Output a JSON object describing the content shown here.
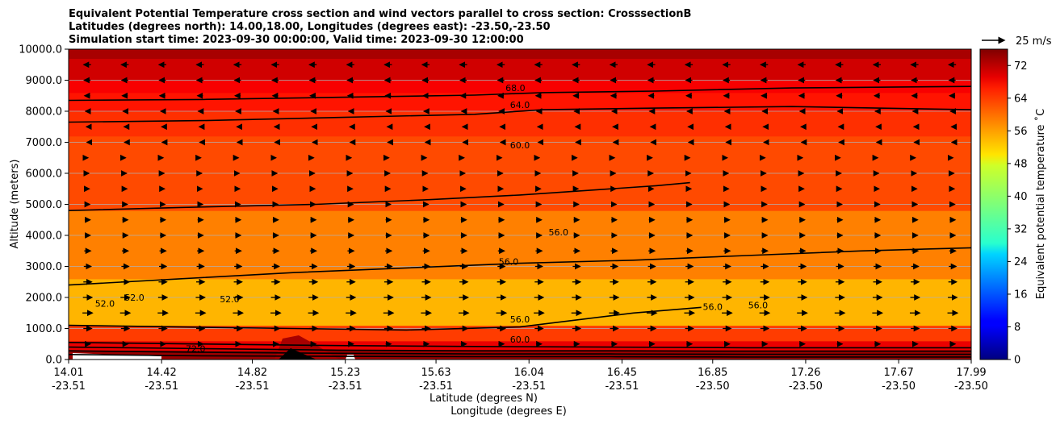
{
  "chart_data": {
    "type": "heatmap",
    "title_lines": [
      "Equivalent Potential Temperature cross section and wind vectors parallel to cross section: CrosssectionB",
      "Latitudes (degrees north): 14.00,18.00, Longitudes (degrees east): -23.50,-23.50",
      "Simulation start time: 2023-09-30 00:00:00, Valid time: 2023-09-30 12:00:00"
    ],
    "xlabel_lines": [
      "Latitude (degrees N)",
      "Longitude (degrees E)"
    ],
    "ylabel": "Altitude (meters)",
    "xlim": [
      14.01,
      17.99
    ],
    "ylim": [
      0,
      10000
    ],
    "x_ticks": [
      {
        "lat": "14.01",
        "lon": "-23.51",
        "value": 14.01
      },
      {
        "lat": "14.42",
        "lon": "-23.51",
        "value": 14.42
      },
      {
        "lat": "14.82",
        "lon": "-23.51",
        "value": 14.82
      },
      {
        "lat": "15.23",
        "lon": "-23.51",
        "value": 15.23
      },
      {
        "lat": "15.63",
        "lon": "-23.51",
        "value": 15.63
      },
      {
        "lat": "16.04",
        "lon": "-23.51",
        "value": 16.04
      },
      {
        "lat": "16.45",
        "lon": "-23.51",
        "value": 16.45
      },
      {
        "lat": "16.85",
        "lon": "-23.50",
        "value": 16.85
      },
      {
        "lat": "17.26",
        "lon": "-23.50",
        "value": 17.26
      },
      {
        "lat": "17.67",
        "lon": "-23.50",
        "value": 17.67
      },
      {
        "lat": "17.99",
        "lon": "-23.50",
        "value": 17.99
      }
    ],
    "y_ticks": [
      {
        "label": "0.0",
        "value": 0
      },
      {
        "label": "1000.0",
        "value": 1000
      },
      {
        "label": "2000.0",
        "value": 2000
      },
      {
        "label": "3000.0",
        "value": 3000
      },
      {
        "label": "4000.0",
        "value": 4000
      },
      {
        "label": "5000.0",
        "value": 5000
      },
      {
        "label": "6000.0",
        "value": 6000
      },
      {
        "label": "7000.0",
        "value": 7000
      },
      {
        "label": "8000.0",
        "value": 8000
      },
      {
        "label": "9000.0",
        "value": 9000
      },
      {
        "label": "10000.0",
        "value": 10000
      }
    ],
    "grid": "horizontal",
    "colorbar": {
      "label": "Equivalent potential temperature ˚C",
      "range": [
        0,
        76
      ],
      "ticks": [
        {
          "label": "0",
          "value": 0
        },
        {
          "label": "8",
          "value": 8
        },
        {
          "label": "16",
          "value": 16
        },
        {
          "label": "24",
          "value": 24
        },
        {
          "label": "32",
          "value": 32
        },
        {
          "label": "40",
          "value": 40
        },
        {
          "label": "48",
          "value": 48
        },
        {
          "label": "56",
          "value": 56
        },
        {
          "label": "64",
          "value": 64
        },
        {
          "label": "72",
          "value": 72
        }
      ],
      "colormap": "jet"
    },
    "quiver_key": {
      "label": "25 m/s",
      "speed": 25
    },
    "theta_e_bands": [
      {
        "from": 0,
        "to": 300,
        "value": 74
      },
      {
        "from": 300,
        "to": 600,
        "value": 68
      },
      {
        "from": 600,
        "to": 1100,
        "value": 62
      },
      {
        "from": 1100,
        "to": 2600,
        "value": 53
      },
      {
        "from": 2600,
        "to": 4800,
        "value": 57
      },
      {
        "from": 4800,
        "to": 7200,
        "value": 61
      },
      {
        "from": 7200,
        "to": 8000,
        "value": 63
      },
      {
        "from": 8000,
        "to": 8600,
        "value": 65
      },
      {
        "from": 8600,
        "to": 9000,
        "value": 67
      },
      {
        "from": 9000,
        "to": 9700,
        "value": 70
      },
      {
        "from": 9700,
        "to": 10000,
        "value": 73
      }
    ],
    "contours": [
      {
        "label": "68.0",
        "value": 68,
        "x": [
          14.01,
          14.6,
          15.2,
          15.8,
          16.1,
          16.6,
          17.2,
          17.99
        ],
        "y": [
          8350,
          8380,
          8450,
          8520,
          8600,
          8650,
          8750,
          8800
        ]
      },
      {
        "label": "64.0",
        "value": 64,
        "x": [
          14.01,
          14.6,
          15.2,
          15.8,
          16.1,
          16.6,
          17.2,
          17.99
        ],
        "y": [
          7650,
          7700,
          7800,
          7900,
          8050,
          8100,
          8150,
          8050
        ]
      },
      {
        "label": "60.0",
        "value": 60,
        "x": [
          14.01,
          14.5,
          15.1,
          15.6,
          16.0,
          16.3,
          16.6,
          16.75
        ],
        "y": [
          4800,
          4900,
          5000,
          5150,
          5300,
          5450,
          5600,
          5700
        ]
      },
      {
        "label": "56.0",
        "value": 56,
        "x": [
          14.01,
          14.5,
          15.0,
          15.5,
          16.0,
          16.5,
          17.0,
          17.5,
          17.99
        ],
        "y": [
          2400,
          2600,
          2800,
          2950,
          3100,
          3200,
          3350,
          3500,
          3600
        ]
      },
      {
        "label": "56.0",
        "value": 56,
        "x": [
          14.01,
          14.5,
          15.0,
          15.5,
          16.0,
          16.5,
          16.8
        ],
        "y": [
          1100,
          1050,
          1000,
          950,
          1050,
          1500,
          1680
        ]
      },
      {
        "label": "60.0",
        "value": 60,
        "x": [
          14.01,
          14.6,
          15.2,
          15.8,
          16.4,
          17.0,
          17.99
        ],
        "y": [
          550,
          500,
          450,
          420,
          400,
          380,
          380
        ]
      },
      {
        "label": "64.0",
        "value": 64,
        "x": [
          14.01,
          14.6,
          15.2,
          15.8,
          16.4,
          17.0,
          17.99
        ],
        "y": [
          400,
          350,
          300,
          280,
          280,
          270,
          270
        ]
      },
      {
        "label": "68.0",
        "value": 68,
        "x": [
          14.01,
          14.6,
          15.2,
          15.8,
          16.4,
          17.0,
          17.99
        ],
        "y": [
          280,
          230,
          200,
          180,
          180,
          170,
          170
        ]
      },
      {
        "label": "72.0",
        "value": 72,
        "x": [
          14.01,
          14.6,
          15.2,
          15.8,
          16.4,
          17.0,
          17.99
        ],
        "y": [
          160,
          120,
          100,
          90,
          90,
          80,
          80
        ]
      }
    ],
    "contour_labels": [
      {
        "text": "68.0",
        "x": 15.98,
        "y": 8650
      },
      {
        "text": "64.0",
        "x": 16.0,
        "y": 8100
      },
      {
        "text": "60.0",
        "x": 16.0,
        "y": 6800
      },
      {
        "text": "56.0",
        "x": 16.17,
        "y": 4000
      },
      {
        "text": "56.0",
        "x": 15.95,
        "y": 3050
      },
      {
        "text": "52.0",
        "x": 14.3,
        "y": 1900
      },
      {
        "text": "52.0",
        "x": 14.17,
        "y": 1700
      },
      {
        "text": "52.0",
        "x": 14.72,
        "y": 1850
      },
      {
        "text": "56.0",
        "x": 16.0,
        "y": 1200
      },
      {
        "text": "56.0",
        "x": 16.85,
        "y": 1600
      },
      {
        "text": "56.0",
        "x": 17.05,
        "y": 1650
      },
      {
        "text": "60.0",
        "x": 16.0,
        "y": 550
      },
      {
        "text": "72.0",
        "x": 14.57,
        "y": 250
      }
    ],
    "wind_u": [
      {
        "alt": 9500,
        "u": -8
      },
      {
        "alt": 9000,
        "u": -7
      },
      {
        "alt": 8500,
        "u": -6
      },
      {
        "alt": 8000,
        "u": -4
      },
      {
        "alt": 7500,
        "u": -2
      },
      {
        "alt": 7000,
        "u": -1
      },
      {
        "alt": 6500,
        "u": 1
      },
      {
        "alt": 6000,
        "u": 3
      },
      {
        "alt": 5500,
        "u": 4
      },
      {
        "alt": 5000,
        "u": 5
      },
      {
        "alt": 4500,
        "u": 6
      },
      {
        "alt": 4000,
        "u": 6
      },
      {
        "alt": 3500,
        "u": 7
      },
      {
        "alt": 3000,
        "u": 8
      },
      {
        "alt": 2500,
        "u": 9
      },
      {
        "alt": 2000,
        "u": 10
      },
      {
        "alt": 1500,
        "u": 11
      },
      {
        "alt": 1000,
        "u": 9
      },
      {
        "alt": 500,
        "u": 6
      }
    ]
  }
}
